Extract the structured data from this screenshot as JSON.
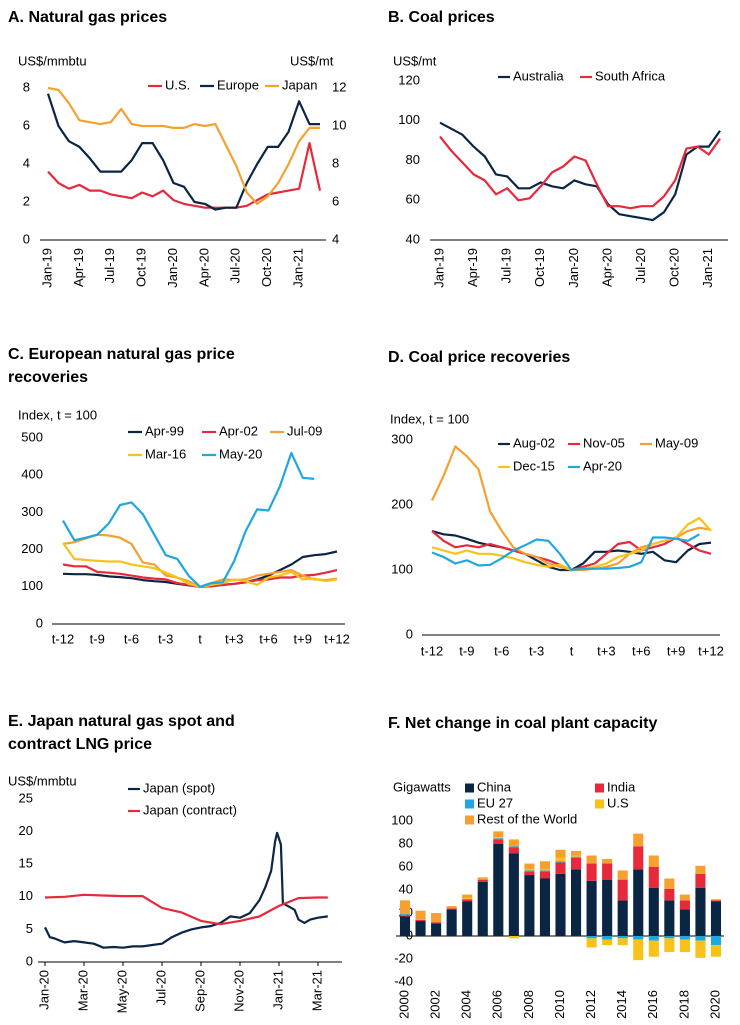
{
  "chart_data": [
    {
      "type": "line",
      "title": "A. Natural gas prices",
      "y_label": "US$/mmbtu",
      "y2_label": "US$/mt",
      "categories": [
        "Jan-19",
        null,
        null,
        "Apr-19",
        null,
        null,
        "Jul-19",
        null,
        null,
        "Oct-19",
        null,
        null,
        "Jan-20",
        null,
        null,
        "Apr-20",
        null,
        null,
        "Jul-20",
        null,
        null,
        "Oct-20",
        null,
        null,
        "Jan-21",
        null,
        null
      ],
      "series": [
        {
          "name": "U.S.",
          "color": "#e8283b",
          "values": [
            3.6,
            3.0,
            2.7,
            2.9,
            2.6,
            2.6,
            2.4,
            2.3,
            2.2,
            2.5,
            2.3,
            2.6,
            2.1,
            1.9,
            1.8,
            1.7,
            1.7,
            1.7,
            1.7,
            1.8,
            2.1,
            2.4,
            2.5,
            2.6,
            2.7,
            5.1,
            2.6
          ]
        },
        {
          "name": "Europe",
          "color": "#0b2545",
          "values": [
            7.7,
            6.0,
            5.2,
            4.9,
            4.3,
            3.6,
            3.6,
            3.6,
            4.2,
            5.1,
            5.1,
            4.2,
            3.0,
            2.8,
            2.0,
            1.9,
            1.6,
            1.7,
            1.7,
            3.0,
            4.0,
            4.9,
            4.9,
            5.7,
            7.3,
            6.1,
            6.1
          ]
        },
        {
          "name": "Japan",
          "color": "#f5a030",
          "axis": "y2",
          "values": [
            12.0,
            11.9,
            11.2,
            10.3,
            10.2,
            10.1,
            10.2,
            10.9,
            10.1,
            10.0,
            10.0,
            10.0,
            9.9,
            9.9,
            10.1,
            10.0,
            10.1,
            9.0,
            7.9,
            6.5,
            5.9,
            6.3,
            7.0,
            8.0,
            9.2,
            9.9,
            9.9
          ]
        }
      ],
      "ylim": [
        0,
        8
      ],
      "yticks": [
        0,
        2,
        4,
        6,
        8
      ],
      "y2lim": [
        4,
        12
      ],
      "y2ticks": [
        4,
        6,
        8,
        10,
        12
      ]
    },
    {
      "type": "line",
      "title": "B. Coal prices",
      "y_label": "US$/mt",
      "categories": [
        "Jan-19",
        null,
        null,
        "Apr-19",
        null,
        null,
        "Jul-19",
        null,
        null,
        "Oct-19",
        null,
        null,
        "Jan-20",
        null,
        null,
        "Apr-20",
        null,
        null,
        "Jul-20",
        null,
        null,
        "Oct-20",
        null,
        null,
        "Jan-21",
        null
      ],
      "series": [
        {
          "name": "Australia",
          "color": "#0b2545",
          "values": [
            99,
            96,
            93,
            87,
            82,
            73,
            72,
            66,
            66,
            69,
            67,
            66,
            70,
            68,
            67,
            58,
            53,
            52,
            51,
            50,
            54,
            63,
            83,
            87,
            87,
            95
          ]
        },
        {
          "name": "South Africa",
          "color": "#e8283b",
          "values": [
            92,
            85,
            79,
            73,
            70,
            63,
            66,
            60,
            61,
            67,
            74,
            77,
            82,
            80,
            68,
            57,
            57,
            56,
            57,
            57,
            62,
            70,
            86,
            87,
            83,
            91
          ]
        }
      ],
      "ylim": [
        40,
        120
      ],
      "yticks": [
        40,
        60,
        80,
        100,
        120
      ]
    },
    {
      "type": "line",
      "title": "C. European natural gas price recoveries",
      "y_label": "Index, t = 100",
      "categories": [
        "t-12",
        null,
        null,
        "t-9",
        null,
        null,
        "t-6",
        null,
        null,
        "t-3",
        null,
        null,
        "t",
        null,
        null,
        "t+3",
        null,
        null,
        "t+6",
        null,
        null,
        "t+9",
        null,
        null,
        "t+12"
      ],
      "series": [
        {
          "name": "Apr-99",
          "color": "#0b2545",
          "values": [
            135,
            134,
            134,
            132,
            128,
            126,
            123,
            118,
            115,
            113,
            108,
            104,
            100,
            102,
            105,
            108,
            112,
            120,
            130,
            145,
            160,
            180,
            185,
            188,
            195
          ]
        },
        {
          "name": "Apr-02",
          "color": "#e8283b",
          "values": [
            160,
            155,
            155,
            140,
            138,
            135,
            130,
            125,
            122,
            120,
            110,
            105,
            100,
            102,
            105,
            108,
            112,
            118,
            120,
            125,
            125,
            130,
            132,
            138,
            145
          ]
        },
        {
          "name": "Jul-09",
          "color": "#f5a030",
          "values": [
            215,
            220,
            230,
            240,
            238,
            232,
            215,
            165,
            160,
            130,
            125,
            115,
            100,
            110,
            120,
            118,
            120,
            130,
            135,
            140,
            145,
            130,
            120,
            118,
            122
          ]
        },
        {
          "name": "Mar-16",
          "color": "#f7c21a",
          "values": [
            218,
            175,
            172,
            170,
            168,
            168,
            160,
            155,
            150,
            138,
            125,
            108,
            100,
            105,
            110,
            120,
            115,
            105,
            125,
            130,
            140,
            120,
            122,
            115,
            120
          ]
        },
        {
          "name": "May-20",
          "color": "#1fa8e0",
          "values": [
            278,
            225,
            232,
            240,
            270,
            320,
            327,
            295,
            240,
            185,
            175,
            130,
            100,
            110,
            112,
            170,
            250,
            308,
            305,
            370,
            460,
            393,
            390,
            null,
            null
          ]
        }
      ],
      "ylim": [
        0,
        500
      ],
      "yticks": [
        0,
        100,
        200,
        300,
        400,
        500
      ]
    },
    {
      "type": "line",
      "title": "D. Coal price recoveries",
      "y_label": "Index, t = 100",
      "categories": [
        "t-12",
        null,
        null,
        "t-9",
        null,
        null,
        "t-6",
        null,
        null,
        "t-3",
        null,
        null,
        "t",
        null,
        null,
        "t+3",
        null,
        null,
        "t+6",
        null,
        null,
        "t+9",
        null,
        null,
        "t+12"
      ],
      "series": [
        {
          "name": "Aug-02",
          "color": "#0b2545",
          "values": [
            160,
            155,
            153,
            148,
            142,
            138,
            135,
            130,
            125,
            115,
            105,
            100,
            100,
            110,
            128,
            128,
            130,
            128,
            125,
            128,
            115,
            112,
            130,
            140,
            142
          ]
        },
        {
          "name": "Nov-05",
          "color": "#e8283b",
          "values": [
            160,
            145,
            135,
            138,
            135,
            140,
            135,
            130,
            125,
            120,
            115,
            108,
            100,
            105,
            110,
            125,
            140,
            143,
            130,
            135,
            140,
            150,
            140,
            130,
            125
          ]
        },
        {
          "name": "May-09",
          "color": "#f5a030",
          "values": [
            207,
            245,
            290,
            275,
            255,
            190,
            160,
            135,
            125,
            120,
            110,
            105,
            100,
            100,
            102,
            105,
            110,
            125,
            135,
            140,
            145,
            150,
            160,
            165,
            162
          ]
        },
        {
          "name": "Dec-15",
          "color": "#f7c21a",
          "values": [
            135,
            130,
            125,
            130,
            125,
            125,
            122,
            118,
            112,
            108,
            105,
            108,
            100,
            102,
            105,
            110,
            120,
            125,
            130,
            140,
            145,
            150,
            170,
            180,
            160
          ]
        },
        {
          "name": "Apr-20",
          "color": "#1fa8e0",
          "values": [
            127,
            120,
            110,
            115,
            107,
            108,
            118,
            130,
            138,
            147,
            145,
            125,
            100,
            102,
            102,
            102,
            103,
            105,
            112,
            150,
            150,
            148,
            145,
            155,
            null
          ]
        }
      ],
      "ylim": [
        0,
        300
      ],
      "yticks": [
        0,
        100,
        200,
        300
      ]
    },
    {
      "type": "line",
      "title": "E. Japan natural gas spot and contract LNG price",
      "y_label": "US$/mmbtu",
      "series": [
        {
          "name": "Japan (spot)",
          "color": "#0b2545",
          "x": [
            0,
            0.25,
            0.5,
            0.75,
            1,
            1.5,
            2,
            2.5,
            3,
            3.5,
            4,
            4.5,
            5,
            5.5,
            6,
            6.5,
            7,
            7.5,
            8,
            8.5,
            9,
            9.5,
            10,
            10.5,
            11,
            11.3,
            11.6,
            11.8,
            11.9,
            12.1,
            12.2,
            12.5,
            12.8,
            13,
            13.3,
            13.6,
            14,
            14.5
          ],
          "values": [
            5.3,
            3.8,
            3.6,
            3.3,
            3.0,
            3.2,
            3.0,
            2.8,
            2.2,
            2.3,
            2.2,
            2.4,
            2.4,
            2.6,
            2.8,
            3.8,
            4.5,
            5.0,
            5.3,
            5.5,
            6.0,
            7.0,
            6.8,
            7.5,
            9.5,
            11.5,
            14,
            18.5,
            19.8,
            18,
            9,
            8.5,
            8.0,
            6.5,
            6.0,
            6.5,
            6.8,
            7.0
          ]
        },
        {
          "name": "Japan (contract)",
          "color": "#e8283b",
          "x": [
            0,
            1,
            2,
            3,
            4,
            5,
            6,
            7,
            8,
            9,
            10,
            11,
            12,
            13,
            14,
            14.5
          ],
          "values": [
            9.9,
            10.0,
            10.3,
            10.2,
            10.1,
            10.1,
            8.3,
            7.6,
            6.3,
            5.8,
            6.3,
            7.0,
            8.6,
            9.8,
            9.9,
            9.9
          ]
        }
      ],
      "xlim": [
        0,
        15
      ],
      "xticks": [
        {
          "value": 0,
          "label": "Jan-20"
        },
        {
          "value": 2,
          "label": "Mar-20"
        },
        {
          "value": 4,
          "label": "May-20"
        },
        {
          "value": 6,
          "label": "Jul-20"
        },
        {
          "value": 8,
          "label": "Sep-20"
        },
        {
          "value": 10,
          "label": "Nov-20"
        },
        {
          "value": 12,
          "label": "Jan-21"
        },
        {
          "value": 14,
          "label": "Mar-21"
        }
      ],
      "ylim": [
        0,
        25
      ],
      "yticks": [
        0,
        5,
        10,
        15,
        20,
        25
      ]
    },
    {
      "type": "bar",
      "stacked": true,
      "title": "F. Net change in coal plant capacity",
      "y_label": "Gigawatts",
      "categories": [
        "2000",
        null,
        "2002",
        null,
        "2004",
        null,
        "2006",
        null,
        "2008",
        null,
        "2010",
        null,
        "2012",
        null,
        "2014",
        null,
        "2016",
        null,
        "2018",
        null,
        "2020"
      ],
      "series": [
        {
          "name": "China",
          "color": "#0b2545",
          "values": [
            17,
            13,
            11,
            23,
            30,
            47,
            80,
            72,
            53,
            50,
            54,
            58,
            48,
            49,
            31,
            58,
            42,
            31,
            23,
            42,
            30
          ]
        },
        {
          "name": "India",
          "color": "#e8283b",
          "values": [
            1,
            1,
            1,
            1,
            2,
            2,
            4,
            5,
            3,
            6,
            10,
            10,
            15,
            14,
            18,
            20,
            18,
            10,
            8,
            12,
            1
          ]
        },
        {
          "name": "EU 27",
          "color": "#1fa8e0",
          "values": [
            1,
            0,
            0,
            0,
            0,
            0,
            1,
            1,
            1,
            1,
            1,
            1,
            -2,
            -3,
            -2,
            -3,
            -4,
            -2,
            -3,
            -4,
            -8
          ]
        },
        {
          "name": "U.S",
          "color": "#f7c21a",
          "values": [
            0,
            0,
            0,
            0,
            1,
            0,
            1,
            -2,
            1,
            1,
            3,
            1,
            -8,
            -5,
            -6,
            -18,
            -14,
            -12,
            -11,
            -15,
            -10
          ]
        },
        {
          "name": "Rest of the World",
          "color": "#f5a030",
          "values": [
            12,
            8,
            8,
            2,
            3,
            2,
            5,
            6,
            5,
            7,
            7,
            4,
            7,
            4,
            8,
            11,
            10,
            9,
            5,
            7,
            1
          ]
        }
      ],
      "ylim": [
        -40,
        100
      ],
      "yticks": [
        -40,
        -20,
        0,
        20,
        40,
        60,
        80,
        100
      ]
    }
  ]
}
